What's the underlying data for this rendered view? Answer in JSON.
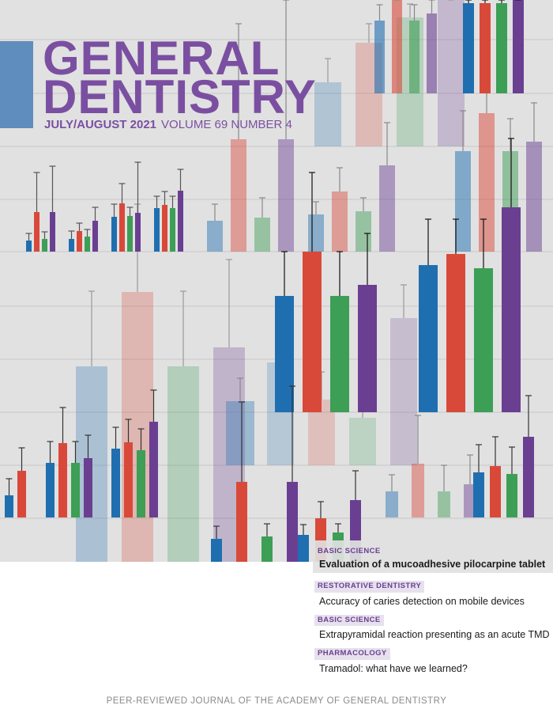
{
  "masthead": {
    "title_line1": "GENERAL",
    "title_line2": "DENTISTRY",
    "issue_date": "JULY/AUGUST 2021",
    "volume": "VOLUME 69 NUMBER 4"
  },
  "articles": [
    {
      "section": "BASIC SCIENCE",
      "title": "Evaluation of a mucoadhesive pilocarpine tablet",
      "featured": true
    },
    {
      "section": "RESTORATIVE DENTISTRY",
      "title": "Accuracy of caries detection on mobile devices"
    },
    {
      "section": "BASIC SCIENCE",
      "title": "Extrapyramidal reaction presenting as an acute TMD"
    },
    {
      "section": "PHARMACOLOGY",
      "title": "Tramadol: what have we learned?"
    }
  ],
  "footer": "PEER-REVIEWED JOURNAL OF THE ACADEMY OF GENERAL DENTISTRY",
  "colors": {
    "background": "#e1e1e1",
    "brand_purple": "#7a4fa1",
    "bar_blue": "#1f6fb0",
    "bar_red": "#d9493a",
    "bar_green": "#3d9e56",
    "bar_purple": "#6a3f92",
    "accent_block": "#5f8dbd"
  }
}
